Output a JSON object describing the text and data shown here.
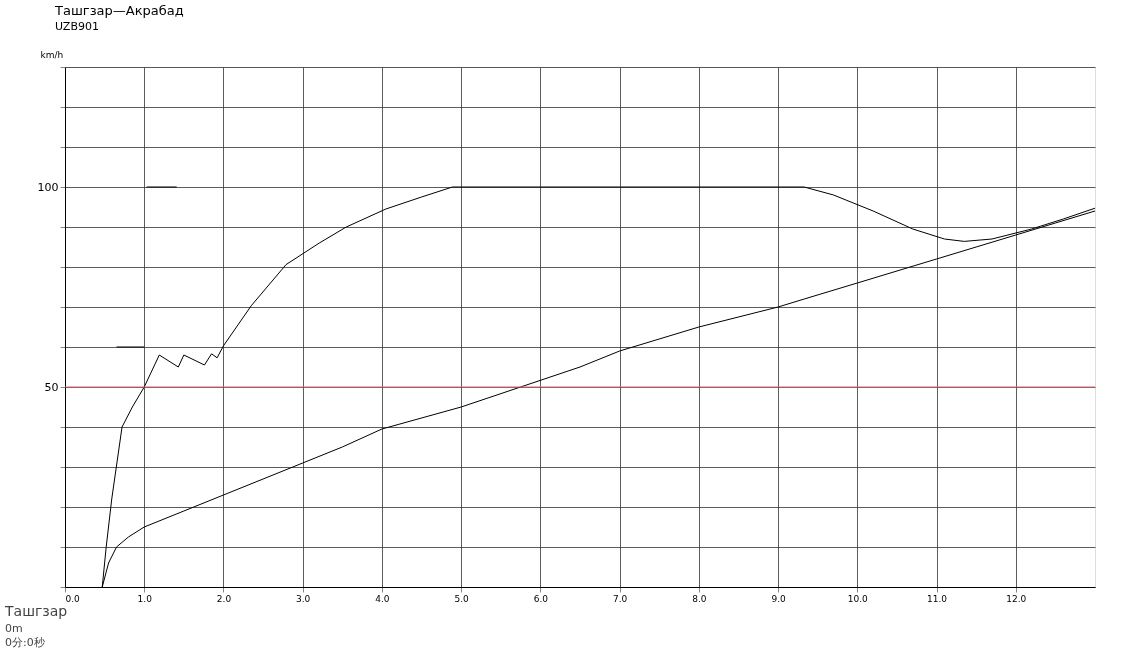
{
  "chart_data": {
    "type": "line",
    "title": "Ташгзар—Акрабад",
    "subtitle": "UZB901",
    "ylabel": "km/h",
    "xlim": [
      0,
      13
    ],
    "ylim": [
      0,
      130
    ],
    "xticks": [
      {
        "value": 0,
        "label": "0.0"
      },
      {
        "value": 1,
        "label": "1.0"
      },
      {
        "value": 2,
        "label": "2.0"
      },
      {
        "value": 3,
        "label": "3.0"
      },
      {
        "value": 4,
        "label": "4.0"
      },
      {
        "value": 5,
        "label": "5.0"
      },
      {
        "value": 6,
        "label": "6.0"
      },
      {
        "value": 7,
        "label": "7.0"
      },
      {
        "value": 8,
        "label": "8.0"
      },
      {
        "value": 9,
        "label": "9.0"
      },
      {
        "value": 10,
        "label": "10.0"
      },
      {
        "value": 11,
        "label": "11.0"
      },
      {
        "value": 12,
        "label": "12.0"
      }
    ],
    "yticks": [
      {
        "value": 0,
        "label": null
      },
      {
        "value": 10,
        "label": null
      },
      {
        "value": 20,
        "label": null
      },
      {
        "value": 30,
        "label": null
      },
      {
        "value": 40,
        "label": null
      },
      50,
      {
        "value": 60,
        "label": null
      },
      {
        "value": 70,
        "label": null
      },
      {
        "value": 80,
        "label": null
      },
      {
        "value": 90,
        "label": null
      },
      100,
      {
        "value": 110,
        "label": null
      },
      {
        "value": 120,
        "label": null
      },
      {
        "value": 130,
        "label": null
      }
    ],
    "grid": true,
    "marker": "none",
    "line_style": "solid",
    "series": [
      {
        "color": "#000000",
        "x": [
          0.47,
          0.52,
          0.59,
          0.72,
          0.85,
          1.0,
          1.19,
          1.43,
          1.5,
          1.76,
          1.85,
          1.92,
          2.0,
          2.35,
          2.79,
          3.21,
          3.55,
          4.05,
          4.5,
          4.89,
          6.0,
          7.0,
          8.0,
          9.0,
          9.33,
          9.7,
          10.2,
          10.7,
          11.1,
          11.35,
          11.7,
          12.2,
          12.6,
          13.0
        ],
        "values": [
          0,
          10,
          22,
          40,
          45,
          50,
          58,
          55,
          58,
          55.5,
          58.3,
          57.3,
          60.3,
          70.3,
          80.6,
          86,
          90,
          94.5,
          97.5,
          100,
          100,
          100,
          100,
          100,
          100,
          98,
          94,
          89.5,
          87,
          86.4,
          87,
          89.5,
          92,
          94.7
        ]
      },
      {
        "color": "#000000",
        "x": [
          0.47,
          0.55,
          0.65,
          0.8,
          1.0,
          1.5,
          2.0,
          2.5,
          3.0,
          3.5,
          4.0,
          5.0,
          5.75,
          6.5,
          7.0,
          8.0,
          9.0,
          9.33,
          10.0,
          11.0,
          11.5,
          12.0,
          12.5,
          13.0
        ],
        "values": [
          0,
          6,
          10,
          12.5,
          15,
          19,
          23,
          27,
          31,
          35,
          39.5,
          45,
          50,
          55,
          59,
          65,
          70,
          72,
          76,
          82,
          85,
          88,
          91,
          94
        ]
      },
      {
        "color": "#000000",
        "x": [
          1.03,
          1.41
        ],
        "values": [
          100,
          100
        ]
      },
      {
        "color": "#000000",
        "x": [
          0.65,
          1.0
        ],
        "values": [
          60,
          60
        ]
      }
    ],
    "ref_lines": [
      {
        "axis": "y",
        "value": 50,
        "color": "#e06070"
      }
    ],
    "annotations": [
      "Ташгзар",
      "0m",
      "0分:0秒"
    ]
  }
}
